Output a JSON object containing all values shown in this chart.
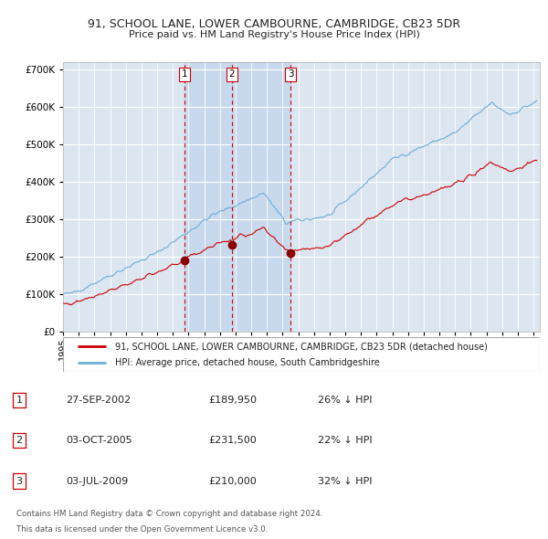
{
  "title1": "91, SCHOOL LANE, LOWER CAMBOURNE, CAMBRIDGE, CB23 5DR",
  "title2": "Price paid vs. HM Land Registry's House Price Index (HPI)",
  "legend1": "91, SCHOOL LANE, LOWER CAMBOURNE, CAMBRIDGE, CB23 5DR (detached house)",
  "legend2": "HPI: Average price, detached house, South Cambridgeshire",
  "footer1": "Contains HM Land Registry data © Crown copyright and database right 2024.",
  "footer2": "This data is licensed under the Open Government Licence v3.0.",
  "transactions": [
    {
      "num": 1,
      "date": "27-SEP-2002",
      "price": 189950,
      "hpi_pct": "26% ↓ HPI"
    },
    {
      "num": 2,
      "date": "03-OCT-2005",
      "price": 231500,
      "hpi_pct": "22% ↓ HPI"
    },
    {
      "num": 3,
      "date": "03-JUL-2009",
      "price": 210000,
      "hpi_pct": "32% ↓ HPI"
    }
  ],
  "ylim": [
    0,
    720000
  ],
  "yticks": [
    0,
    100000,
    200000,
    300000,
    400000,
    500000,
    600000,
    700000
  ],
  "hpi_color": "#6baed6",
  "price_color": "#cc0000",
  "bg_color": "#dce6f1",
  "grid_color": "#ffffff",
  "vline_color": "#cc0000",
  "marker_color": "#8b0000",
  "shaded_region_color": "#c9d9ed",
  "transaction_dates_decimal": [
    2002.743,
    2005.753,
    2009.504
  ],
  "xlim": [
    1995.0,
    2025.4
  ],
  "xtick_years": [
    1995,
    1996,
    1997,
    1998,
    1999,
    2000,
    2001,
    2002,
    2003,
    2004,
    2005,
    2006,
    2007,
    2008,
    2009,
    2010,
    2011,
    2012,
    2013,
    2014,
    2015,
    2016,
    2017,
    2018,
    2019,
    2020,
    2021,
    2022,
    2023,
    2024,
    2025
  ]
}
